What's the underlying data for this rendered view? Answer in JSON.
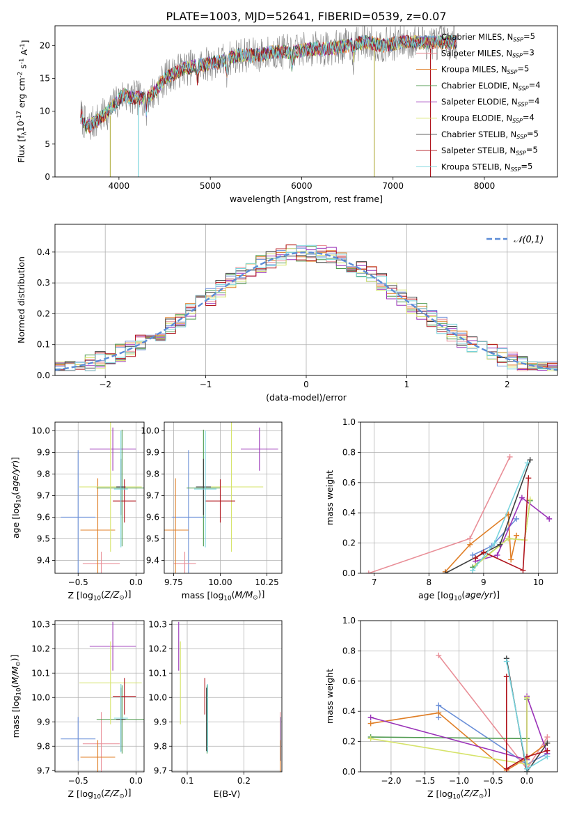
{
  "figure_title": "PLATE=1003, MJD=52641, FIBERID=0539, z=0.07",
  "colors": {
    "Chabrier MILES": "#6a8fd8",
    "Salpeter MILES": "#e98f98",
    "Kroupa MILES": "#e07f27",
    "Chabrier ELODIE": "#4f9a4f",
    "Salpeter ELODIE": "#9a32b8",
    "Kroupa ELODIE": "#d6e36a",
    "Chabrier STELIB": "#3f3f3f",
    "Salpeter STELIB": "#b0151d",
    "Kroupa STELIB": "#78d4dd"
  },
  "chart_data": [
    {
      "id": "spectrum",
      "type": "line",
      "title": "PLATE=1003, MJD=52641, FIBERID=0539, z=0.07",
      "xlabel": "wavelength [Angstrom, rest frame]",
      "ylabel": "Flux [f$_\\lambda$10$^{-17}$ erg cm$^{-2}$ s$^{-1}$ A$^{-1}$]",
      "xlim": [
        3300,
        8800
      ],
      "ylim": [
        0,
        23
      ],
      "xticks": [
        4000,
        5000,
        6000,
        7000,
        8000
      ],
      "yticks": [
        0,
        5,
        10,
        15,
        20
      ],
      "legend_placement": "right",
      "legend": [
        {
          "label": "Chabrier MILES, N$_{SSP}$=5",
          "key": "Chabrier MILES"
        },
        {
          "label": "Salpeter MILES, N$_{SSP}$=3",
          "key": "Salpeter MILES"
        },
        {
          "label": "Kroupa MILES, N$_{SSP}$=5",
          "key": "Kroupa MILES"
        },
        {
          "label": "Chabrier ELODIE, N$_{SSP}$=4",
          "key": "Chabrier ELODIE"
        },
        {
          "label": "Salpeter ELODIE, N$_{SSP}$=4",
          "key": "Salpeter ELODIE"
        },
        {
          "label": "Kroupa ELODIE, N$_{SSP}$=4",
          "key": "Kroupa ELODIE"
        },
        {
          "label": "Chabrier STELIB, N$_{SSP}$=5",
          "key": "Chabrier STELIB"
        },
        {
          "label": "Salpeter STELIB, N$_{SSP}$=5",
          "key": "Salpeter STELIB"
        },
        {
          "label": "Kroupa STELIB, N$_{SSP}$=5",
          "key": "Kroupa STELIB"
        }
      ],
      "data_trend": [
        [
          3580,
          9.5
        ],
        [
          3650,
          7.5
        ],
        [
          3750,
          8.5
        ],
        [
          3850,
          9.5
        ],
        [
          3950,
          11
        ],
        [
          4050,
          12.5
        ],
        [
          4150,
          12
        ],
        [
          4300,
          12
        ],
        [
          4400,
          13
        ],
        [
          4500,
          15
        ],
        [
          4700,
          16.5
        ],
        [
          4900,
          17
        ],
        [
          5100,
          17.5
        ],
        [
          5300,
          18.5
        ],
        [
          5500,
          18.5
        ],
        [
          5700,
          19
        ],
        [
          5900,
          19
        ],
        [
          6100,
          19.5
        ],
        [
          6300,
          19.5
        ],
        [
          6500,
          20
        ],
        [
          6700,
          20.5
        ],
        [
          6900,
          20
        ],
        [
          7100,
          20.5
        ],
        [
          7300,
          20.5
        ],
        [
          7500,
          20.5
        ],
        [
          7700,
          20.5
        ]
      ],
      "deep_lines": [
        3905,
        4215,
        6795,
        7410
      ],
      "absorption_dips": [
        4300,
        4860,
        5180,
        5895,
        6565
      ]
    },
    {
      "id": "residuals",
      "type": "line",
      "xlabel": "(data-model)/error",
      "ylabel": "Normed distribution",
      "xlim": [
        -2.5,
        2.5
      ],
      "ylim": [
        0,
        0.49
      ],
      "xticks": [
        -2,
        -1,
        0,
        1,
        2
      ],
      "yticks": [
        0.0,
        0.1,
        0.2,
        0.3,
        0.4
      ],
      "grid": true,
      "legend_placement": "top-right",
      "gaussian_label": "$\\mathcal{N}(0,1)$",
      "gaussian": {
        "mean": 0,
        "sigma": 1,
        "style": "dashed",
        "color": "#5b8bd6"
      },
      "bin_width": 0.1,
      "series_keys": [
        "Chabrier MILES",
        "Salpeter MILES",
        "Kroupa MILES",
        "Chabrier ELODIE",
        "Salpeter ELODIE",
        "Kroupa ELODIE",
        "Chabrier STELIB",
        "Salpeter STELIB",
        "Kroupa STELIB"
      ]
    },
    {
      "id": "age_vs_Z",
      "type": "scatter",
      "xlabel": "Z [log$_{10}$($Z/Z_\\odot$)]",
      "ylabel": "age  [log$_{10}$($age/yr$)]",
      "xlim": [
        -0.7,
        0.07
      ],
      "ylim": [
        9.34,
        10.04
      ],
      "xticks": [
        -0.5,
        0.0
      ],
      "xticklabels": [
        "−0.5",
        "0.0"
      ],
      "yticks": [
        9.4,
        9.5,
        9.6,
        9.7,
        9.8,
        9.9,
        10.0
      ],
      "grid": true,
      "points": [
        {
          "key": "Chabrier MILES",
          "x": -0.5,
          "xerr": 0.15,
          "y": 9.6,
          "yerr": 0.31
        },
        {
          "key": "Salpeter MILES",
          "x": -0.3,
          "xerr": 0.16,
          "y": 9.385,
          "yerr": 0.055
        },
        {
          "key": "Kroupa MILES",
          "x": -0.33,
          "xerr": 0.15,
          "y": 9.54,
          "yerr": 0.24
        },
        {
          "key": "Chabrier ELODIE",
          "x": -0.12,
          "xerr": 0.22,
          "y": 9.735,
          "yerr": 0.27
        },
        {
          "key": "Salpeter ELODIE",
          "x": -0.2,
          "xerr": 0.2,
          "y": 9.915,
          "yerr": 0.1
        },
        {
          "key": "Kroupa ELODIE",
          "x": -0.22,
          "xerr": 0.27,
          "y": 9.74,
          "yerr": 0.3
        },
        {
          "key": "Chabrier STELIB",
          "x": -0.13,
          "xerr": 0.04,
          "y": 9.74,
          "yerr": 0.13
        },
        {
          "key": "Salpeter STELIB",
          "x": -0.1,
          "xerr": 0.1,
          "y": 9.675,
          "yerr": 0.1
        },
        {
          "key": "Kroupa STELIB",
          "x": -0.13,
          "xerr": 0.06,
          "y": 9.73,
          "yerr": 0.27
        }
      ]
    },
    {
      "id": "age_vs_mass",
      "type": "scatter",
      "xlabel": "mass [log$_{10}$($M/M_\\odot$)]",
      "ylabel": "",
      "xlim": [
        9.7,
        10.33
      ],
      "ylim": [
        9.34,
        10.04
      ],
      "xticks": [
        9.75,
        10.0,
        10.25
      ],
      "xticklabels": [
        "9.75",
        "10.00",
        "10.25"
      ],
      "yticks": [
        9.4,
        9.5,
        9.6,
        9.7,
        9.8,
        9.9,
        10.0
      ],
      "grid": true,
      "points": [
        {
          "key": "Chabrier MILES",
          "x": 9.83,
          "xerr": 0.09,
          "y": 9.6,
          "yerr": 0.31
        },
        {
          "key": "Salpeter MILES",
          "x": 9.81,
          "xerr": 0.06,
          "y": 9.385,
          "yerr": 0.055
        },
        {
          "key": "Kroupa MILES",
          "x": 9.76,
          "xerr": 0.07,
          "y": 9.54,
          "yerr": 0.24
        },
        {
          "key": "Chabrier ELODIE",
          "x": 9.91,
          "xerr": 0.09,
          "y": 9.735,
          "yerr": 0.27
        },
        {
          "key": "Salpeter ELODIE",
          "x": 10.21,
          "xerr": 0.1,
          "y": 9.915,
          "yerr": 0.1
        },
        {
          "key": "Kroupa ELODIE",
          "x": 10.06,
          "xerr": 0.17,
          "y": 9.74,
          "yerr": 0.3
        },
        {
          "key": "Chabrier STELIB",
          "x": 9.91,
          "xerr": 0.04,
          "y": 9.74,
          "yerr": 0.13
        },
        {
          "key": "Salpeter STELIB",
          "x": 10.0,
          "xerr": 0.08,
          "y": 9.675,
          "yerr": 0.1
        },
        {
          "key": "Kroupa STELIB",
          "x": 9.92,
          "xerr": 0.06,
          "y": 9.73,
          "yerr": 0.27
        }
      ]
    },
    {
      "id": "weight_vs_age",
      "type": "line",
      "xlabel": "age  [log$_{10}$($age/yr$)]",
      "ylabel": "mass weight",
      "xlim": [
        6.75,
        10.35
      ],
      "ylim": [
        0,
        1.0
      ],
      "xticks": [
        7,
        8,
        9,
        10
      ],
      "yticks": [
        0.0,
        0.2,
        0.4,
        0.6,
        0.8,
        1.0
      ],
      "grid": true,
      "series": [
        {
          "key": "Chabrier MILES",
          "points": [
            [
              8.8,
              0.12
            ],
            [
              9.15,
              0.18
            ],
            [
              9.6,
              0.36
            ]
          ]
        },
        {
          "key": "Salpeter MILES",
          "points": [
            [
              6.9,
              0.0
            ],
            [
              8.75,
              0.23
            ],
            [
              9.48,
              0.77
            ]
          ]
        },
        {
          "key": "Kroupa MILES",
          "points": [
            [
              8.3,
              0.01
            ],
            [
              8.75,
              0.19
            ],
            [
              9.45,
              0.39
            ],
            [
              9.5,
              0.09
            ],
            [
              9.6,
              0.25
            ]
          ]
        },
        {
          "key": "Chabrier ELODIE",
          "points": [
            [
              8.8,
              0.04
            ],
            [
              9.45,
              0.23
            ],
            [
              9.75,
              0.22
            ],
            [
              9.85,
              0.48
            ]
          ]
        },
        {
          "key": "Salpeter ELODIE",
          "points": [
            [
              8.85,
              0.08
            ],
            [
              9.25,
              0.12
            ],
            [
              9.7,
              0.5
            ],
            [
              10.2,
              0.36
            ]
          ]
        },
        {
          "key": "Kroupa ELODIE",
          "points": [
            [
              8.85,
              0.05
            ],
            [
              9.45,
              0.23
            ],
            [
              9.75,
              0.22
            ],
            [
              9.85,
              0.49
            ]
          ]
        },
        {
          "key": "Chabrier STELIB",
          "points": [
            [
              8.3,
              0.0
            ],
            [
              9.3,
              0.19
            ],
            [
              9.85,
              0.75
            ]
          ]
        },
        {
          "key": "Salpeter STELIB",
          "points": [
            [
              8.85,
              0.1
            ],
            [
              9.0,
              0.14
            ],
            [
              9.72,
              0.02
            ],
            [
              9.82,
              0.63
            ]
          ]
        },
        {
          "key": "Kroupa STELIB",
          "points": [
            [
              8.8,
              0.02
            ],
            [
              9.2,
              0.2
            ],
            [
              9.8,
              0.73
            ]
          ]
        }
      ]
    },
    {
      "id": "mass_vs_Z",
      "type": "scatter",
      "xlabel": "Z [log$_{10}$($Z/Z_\\odot$)]",
      "ylabel": "mass [log$_{10}$($M/M_\\odot$)]",
      "xlim": [
        -0.7,
        0.07
      ],
      "ylim": [
        9.695,
        10.315
      ],
      "xticks": [
        -0.5,
        0.0
      ],
      "xticklabels": [
        "−0.5",
        "0.0"
      ],
      "yticks": [
        9.7,
        9.8,
        9.9,
        10.0,
        10.1,
        10.2,
        10.3
      ],
      "grid": true,
      "points": [
        {
          "key": "Chabrier MILES",
          "x": -0.5,
          "xerr": 0.15,
          "y": 9.83,
          "yerr": 0.09
        },
        {
          "key": "Salpeter MILES",
          "x": -0.3,
          "xerr": 0.16,
          "y": 9.81,
          "yerr": 0.13
        },
        {
          "key": "Kroupa MILES",
          "x": -0.33,
          "xerr": 0.15,
          "y": 9.755,
          "yerr": 0.07
        },
        {
          "key": "Chabrier ELODIE",
          "x": -0.12,
          "xerr": 0.22,
          "y": 9.91,
          "yerr": 0.14
        },
        {
          "key": "Salpeter ELODIE",
          "x": -0.2,
          "xerr": 0.2,
          "y": 10.21,
          "yerr": 0.1
        },
        {
          "key": "Kroupa ELODIE",
          "x": -0.22,
          "xerr": 0.27,
          "y": 10.06,
          "yerr": 0.17
        },
        {
          "key": "Chabrier STELIB",
          "x": -0.13,
          "xerr": 0.04,
          "y": 9.91,
          "yerr": 0.13
        },
        {
          "key": "Salpeter STELIB",
          "x": -0.1,
          "xerr": 0.1,
          "y": 10.005,
          "yerr": 0.075
        },
        {
          "key": "Kroupa STELIB",
          "x": -0.13,
          "xerr": 0.06,
          "y": 9.915,
          "yerr": 0.14
        }
      ]
    },
    {
      "id": "mass_vs_EBV",
      "type": "scatter",
      "xlabel": "E(B-V)",
      "ylabel": "",
      "xlim": [
        0.073,
        0.267
      ],
      "ylim": [
        9.695,
        10.315
      ],
      "xticks": [
        0.1,
        0.2
      ],
      "xticklabels": [
        "0.1",
        "0.2"
      ],
      "yticks": [
        9.7,
        9.8,
        9.9,
        10.0,
        10.1,
        10.2,
        10.3
      ],
      "grid": true,
      "points": [
        {
          "key": "Chabrier MILES",
          "x": 0.265,
          "xerr": 0,
          "y": 9.83,
          "yerr": 0.09
        },
        {
          "key": "Salpeter MILES",
          "x": 0.264,
          "xerr": 0,
          "y": 9.81,
          "yerr": 0.13
        },
        {
          "key": "Kroupa MILES",
          "x": 0.264,
          "xerr": 0,
          "y": 9.755,
          "yerr": 0.07
        },
        {
          "key": "Chabrier ELODIE",
          "x": 0.135,
          "xerr": 0,
          "y": 9.91,
          "yerr": 0.14
        },
        {
          "key": "Salpeter ELODIE",
          "x": 0.085,
          "xerr": 0,
          "y": 10.21,
          "yerr": 0.1
        },
        {
          "key": "Kroupa ELODIE",
          "x": 0.088,
          "xerr": 0,
          "y": 10.06,
          "yerr": 0.17
        },
        {
          "key": "Chabrier STELIB",
          "x": 0.134,
          "xerr": 0,
          "y": 9.91,
          "yerr": 0.13
        },
        {
          "key": "Salpeter STELIB",
          "x": 0.131,
          "xerr": 0,
          "y": 10.005,
          "yerr": 0.075
        },
        {
          "key": "Kroupa STELIB",
          "x": 0.136,
          "xerr": 0,
          "y": 9.915,
          "yerr": 0.14
        }
      ]
    },
    {
      "id": "weight_vs_Z",
      "type": "line",
      "xlabel": "Z [log$_{10}$($Z/Z_\\odot$)]",
      "ylabel": "mass weight",
      "xlim": [
        -2.45,
        0.45
      ],
      "ylim": [
        0,
        1.0
      ],
      "xticks": [
        -2.0,
        -1.5,
        -1.0,
        -0.5,
        0.0
      ],
      "xticklabels": [
        "−2.0",
        "−1.5",
        "−1.0",
        "−0.5",
        "0.0"
      ],
      "yticks": [
        0.0,
        0.2,
        0.4,
        0.6,
        0.8,
        1.0
      ],
      "grid": true,
      "series": [
        {
          "key": "Chabrier MILES",
          "points": [
            [
              -1.3,
              0.36
            ],
            [
              -1.3,
              0.44
            ],
            [
              0.0,
              0.05
            ],
            [
              0.3,
              0.12
            ]
          ]
        },
        {
          "key": "Salpeter MILES",
          "points": [
            [
              -1.3,
              0.77
            ],
            [
              0.0,
              0.02
            ],
            [
              0.3,
              0.23
            ]
          ]
        },
        {
          "key": "Kroupa MILES",
          "points": [
            [
              -2.3,
              0.32
            ],
            [
              -1.3,
              0.39
            ],
            [
              -0.3,
              0.01
            ],
            [
              0.0,
              0.09
            ],
            [
              0.3,
              0.19
            ]
          ]
        },
        {
          "key": "Chabrier ELODIE",
          "points": [
            [
              -2.3,
              0.23
            ],
            [
              0.0,
              0.22
            ],
            [
              0.0,
              0.48
            ]
          ]
        },
        {
          "key": "Salpeter ELODIE",
          "points": [
            [
              -2.3,
              0.36
            ],
            [
              0.0,
              0.08
            ],
            [
              0.0,
              0.5
            ],
            [
              0.3,
              0.12
            ]
          ]
        },
        {
          "key": "Kroupa ELODIE",
          "points": [
            [
              -2.3,
              0.22
            ],
            [
              0.0,
              0.05
            ],
            [
              0.0,
              0.49
            ]
          ]
        },
        {
          "key": "Chabrier STELIB",
          "points": [
            [
              -0.3,
              0.75
            ],
            [
              0.0,
              0.0
            ],
            [
              0.3,
              0.19
            ]
          ]
        },
        {
          "key": "Salpeter STELIB",
          "points": [
            [
              -0.3,
              0.63
            ],
            [
              -0.3,
              0.02
            ],
            [
              0.0,
              0.1
            ],
            [
              0.3,
              0.14
            ]
          ]
        },
        {
          "key": "Kroupa STELIB",
          "points": [
            [
              -0.3,
              0.73
            ],
            [
              0.0,
              0.02
            ],
            [
              0.3,
              0.1
            ]
          ]
        }
      ]
    }
  ]
}
